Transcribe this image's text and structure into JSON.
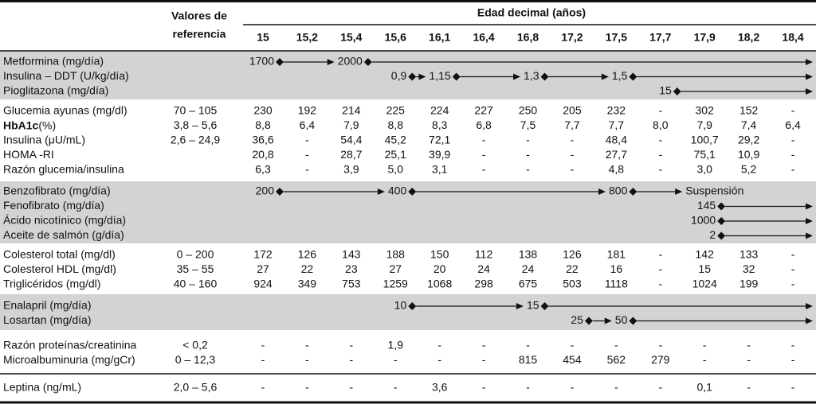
{
  "header": {
    "reference": [
      "Valores de",
      "referencia"
    ],
    "age_title": "Edad decimal (años)",
    "ages": [
      "15",
      "15,2",
      "15,4",
      "15,6",
      "16,1",
      "16,4",
      "16,8",
      "17,2",
      "17,5",
      "17,7",
      "17,9",
      "18,2",
      "18,4"
    ]
  },
  "sections": [
    {
      "shaded": true,
      "rows": [
        {
          "label": "Metformina (mg/día)",
          "doses": [
            "1700",
            null,
            "2000",
            null,
            null,
            null,
            null,
            null,
            null,
            null,
            null,
            null,
            null
          ]
        },
        {
          "label": "Insulina – DDT (U/kg/día)",
          "doses": [
            null,
            null,
            null,
            "0,9",
            "1,15",
            null,
            "1,3",
            null,
            "1,5",
            null,
            null,
            null,
            null
          ]
        },
        {
          "label": "Pioglitazona (mg/día)",
          "doses": [
            null,
            null,
            null,
            null,
            null,
            null,
            null,
            null,
            null,
            "15",
            null,
            null,
            null
          ]
        }
      ]
    },
    {
      "shaded": false,
      "rows": [
        {
          "label": "Glucemia ayunas (mg/dl)",
          "reference": "70 – 105",
          "values": [
            "230",
            "192",
            "214",
            "225",
            "224",
            "227",
            "250",
            "205",
            "232",
            "-",
            "302",
            "152",
            "-"
          ]
        },
        {
          "label_bold": "HbA1c",
          "label": "(%)",
          "reference": "3,8 – 5,6",
          "values": [
            "8,8",
            "6,4",
            "7,9",
            "8,8",
            "8,3",
            "6,8",
            "7,5",
            "7,7",
            "7,7",
            "8,0",
            "7,9",
            "7,4",
            "6,4"
          ]
        },
        {
          "label": "Insulina (μU/mL)",
          "reference": "2,6 – 24,9",
          "values": [
            "36,6",
            "-",
            "54,4",
            "45,2",
            "72,1",
            "-",
            "-",
            "-",
            "48,4",
            "-",
            "100,7",
            "29,2",
            "-"
          ]
        },
        {
          "label": "HOMA -RI",
          "values": [
            "20,8",
            "-",
            "28,7",
            "25,1",
            "39,9",
            "-",
            "-",
            "-",
            "27,7",
            "-",
            "75,1",
            "10,9",
            "-"
          ]
        },
        {
          "label": "Razón glucemia/insulina",
          "values": [
            "6,3",
            "-",
            "3,9",
            "5,0",
            "3,1",
            "-",
            "-",
            "-",
            "4,8",
            "-",
            "3,0",
            "5,2",
            "-"
          ]
        }
      ]
    },
    {
      "shaded": true,
      "rows": [
        {
          "label": "Benzofibrato (mg/día)",
          "doses": [
            "200",
            null,
            null,
            "400",
            null,
            null,
            null,
            null,
            "800",
            null,
            "Suspensión",
            null,
            null
          ]
        },
        {
          "label": "Fenofibrato (mg/día)",
          "doses": [
            null,
            null,
            null,
            null,
            null,
            null,
            null,
            null,
            null,
            null,
            "145",
            null,
            null
          ]
        },
        {
          "label": "Ácido nicotínico (mg/día)",
          "doses": [
            null,
            null,
            null,
            null,
            null,
            null,
            null,
            null,
            null,
            null,
            "1000",
            null,
            null
          ]
        },
        {
          "label": "Aceite de salmón (g/día)",
          "doses": [
            null,
            null,
            null,
            null,
            null,
            null,
            null,
            null,
            null,
            null,
            "2",
            null,
            null
          ]
        }
      ]
    },
    {
      "shaded": false,
      "rows": [
        {
          "label": "Colesterol total (mg/dl)",
          "reference": "0 – 200",
          "values": [
            "172",
            "126",
            "143",
            "188",
            "150",
            "112",
            "138",
            "126",
            "181",
            "-",
            "142",
            "133",
            "-"
          ]
        },
        {
          "label": "Colesterol HDL (mg/dl)",
          "reference": "35 – 55",
          "values": [
            "27",
            "22",
            "23",
            "27",
            "20",
            "24",
            "24",
            "22",
            "16",
            "-",
            "15",
            "32",
            "-"
          ]
        },
        {
          "label": "Triglicéridos (mg/dl)",
          "reference": "40 – 160",
          "values": [
            "924",
            "349",
            "753",
            "1259",
            "1068",
            "298",
            "675",
            "503",
            "1118",
            "-",
            "1024",
            "199",
            "-"
          ]
        }
      ]
    },
    {
      "shaded": true,
      "rows": [
        {
          "label": "Enalapril (mg/día)",
          "doses": [
            null,
            null,
            null,
            "10",
            null,
            null,
            "15",
            null,
            null,
            null,
            null,
            null,
            null
          ]
        },
        {
          "label": "Losartan (mg/día)",
          "doses": [
            null,
            null,
            null,
            null,
            null,
            null,
            null,
            "25",
            "50",
            null,
            null,
            null,
            null
          ]
        }
      ]
    },
    {
      "shaded": false,
      "rows": [
        {
          "label": "Razón proteínas/creatinina",
          "reference": "< 0,2",
          "values": [
            "-",
            "-",
            "-",
            "1,9",
            "-",
            "-",
            "-",
            "-",
            "-",
            "-",
            "-",
            "-",
            "-"
          ]
        },
        {
          "label": "Microalbuminuria (mg/gCr)",
          "reference": "0 – 12,3",
          "values": [
            "-",
            "-",
            "-",
            "-",
            "-",
            "-",
            "815",
            "454",
            "562",
            "279",
            "-",
            "-",
            "-"
          ]
        }
      ]
    },
    {
      "shaded": false,
      "rows": [
        {
          "label": "Leptina (ng/mL)",
          "reference": "2,0 – 5,6",
          "values": [
            "-",
            "-",
            "-",
            "-",
            "3,6",
            "-",
            "-",
            "-",
            "-",
            "-",
            "0,1",
            "-",
            "-"
          ]
        }
      ]
    }
  ]
}
